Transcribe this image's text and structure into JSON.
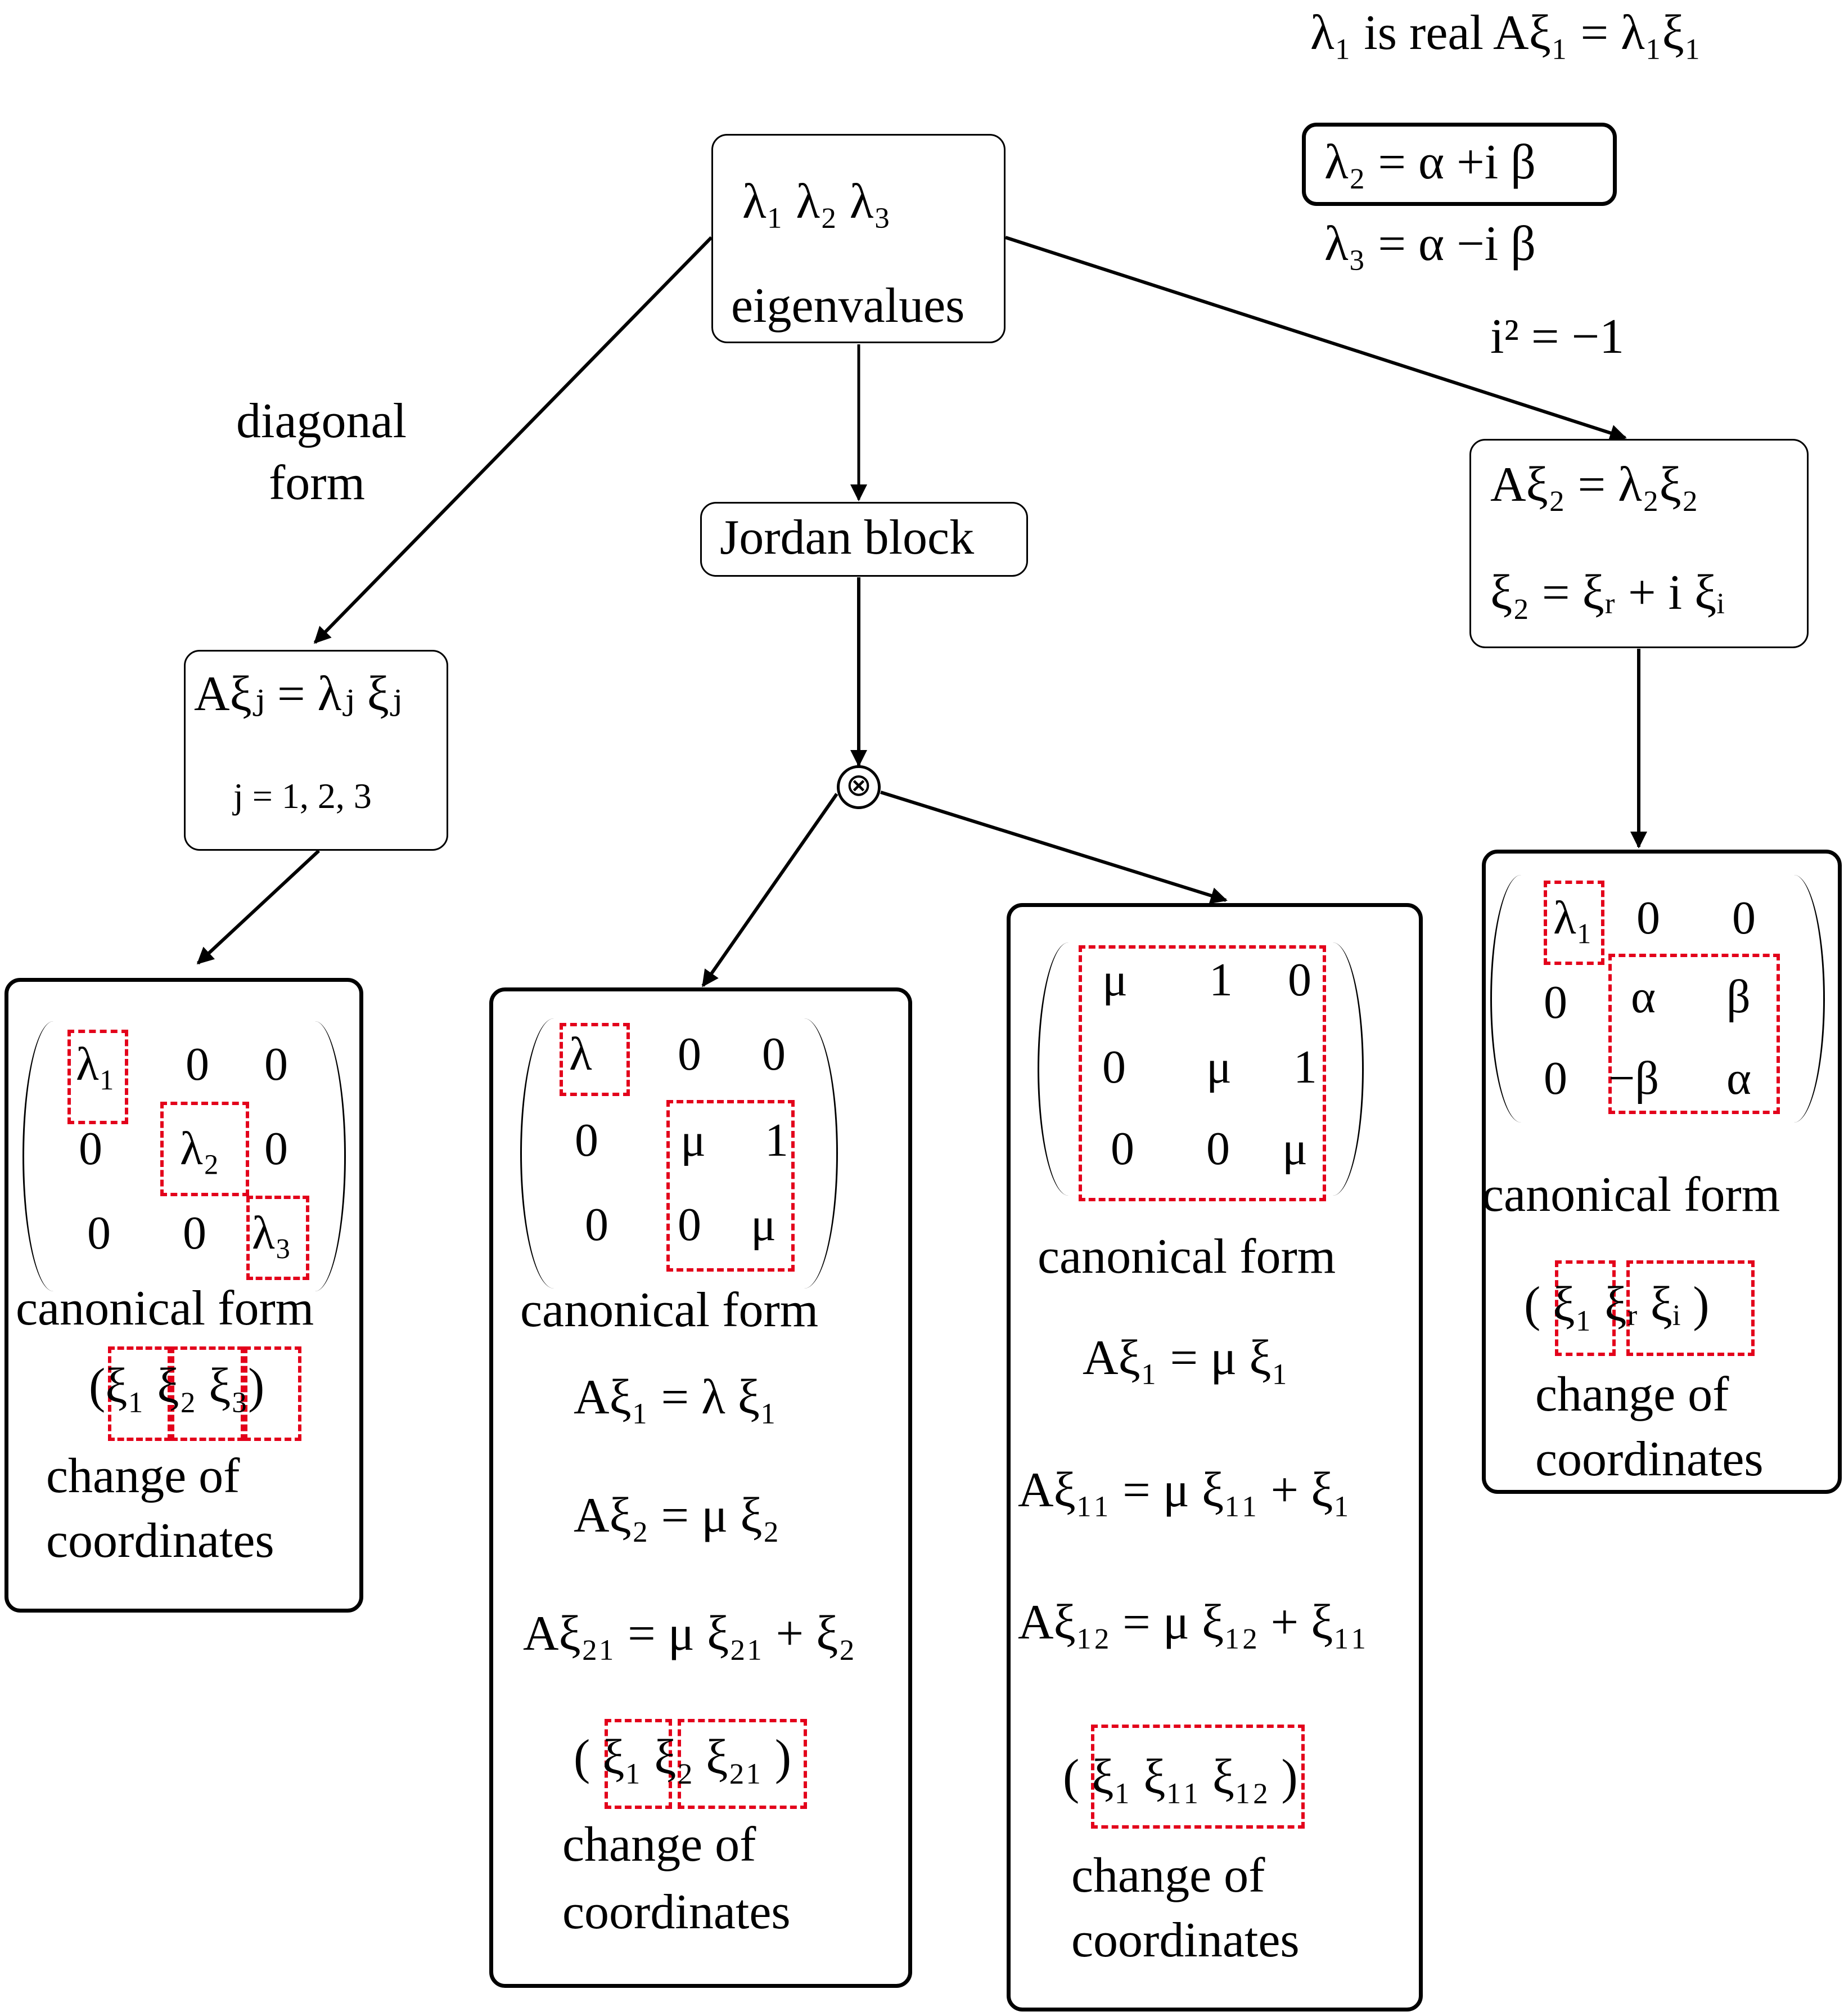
{
  "top_right": {
    "line1": "λ₁  is real  Aξ₁ = λ₁ξ₁",
    "line2": "λ₂ =  α  +i  β",
    "line3": "λ₃ =  α  −i  β",
    "line4": "i² = −1"
  },
  "root": {
    "eigs": "λ₁   λ₂   λ₃",
    "label": "eigenvalues"
  },
  "left_branch": {
    "label_line1": "diagonal",
    "label_line2": "form",
    "eq": "Aξⱼ = λⱼ ξⱼ",
    "index": "j = 1, 2, 3"
  },
  "middle_branch": {
    "label": "Jordan block",
    "node_symbol": "⊗"
  },
  "right_branch": {
    "eq1": "Aξ₂ = λ₂ξ₂",
    "eq2": "ξ₂ =  ξᵣ  + i  ξᵢ"
  },
  "box_diag": {
    "row1": [
      "λ₁",
      "0",
      "0"
    ],
    "row2": [
      "0",
      "λ₂",
      "0"
    ],
    "row3": [
      "0",
      "0",
      "λ₃"
    ],
    "caption": "canonical form",
    "basis": "(ξ₁ ξ₂ ξ₃)",
    "change1": "change of",
    "change2": "coordinates"
  },
  "box_jordan2": {
    "row1": [
      "λ",
      "0",
      "0"
    ],
    "row2": [
      "0",
      "μ",
      "1"
    ],
    "row3": [
      "0",
      "0",
      "μ"
    ],
    "caption": "canonical form",
    "eq1": "Aξ₁ = λ ξ₁",
    "eq2": "Aξ₂ = μ ξ₂",
    "eq3": "Aξ₂₁ = μ ξ₂₁ + ξ₂",
    "basis": "( ξ₁ ξ₂ ξ₂₁ )",
    "change1": "change of",
    "change2": "coordinates"
  },
  "box_jordan3": {
    "row1": [
      "μ",
      "1",
      "0"
    ],
    "row2": [
      "0",
      "μ",
      "1"
    ],
    "row3": [
      "0",
      "0",
      "μ"
    ],
    "caption": "canonical form",
    "eq1": "Aξ₁ = μ ξ₁",
    "eq2": "Aξ₁₁ = μ ξ₁₁ + ξ₁",
    "eq3": "Aξ₁₂ = μ ξ₁₂ + ξ₁₁",
    "basis": "( ξ₁ ξ₁₁ ξ₁₂ )",
    "change1": "change of",
    "change2": "coordinates"
  },
  "box_complex": {
    "row1": [
      "λ₁",
      "0",
      "0"
    ],
    "row2": [
      "0",
      "α",
      "β"
    ],
    "row3": [
      "0",
      "−β",
      "α"
    ],
    "caption": "canonical form",
    "basis": "( ξ₁ ξᵣ ξᵢ )",
    "change1": "change of",
    "change2": "coordinates"
  },
  "colors": {
    "stroke": "#000000",
    "highlight": "#e3001b"
  }
}
